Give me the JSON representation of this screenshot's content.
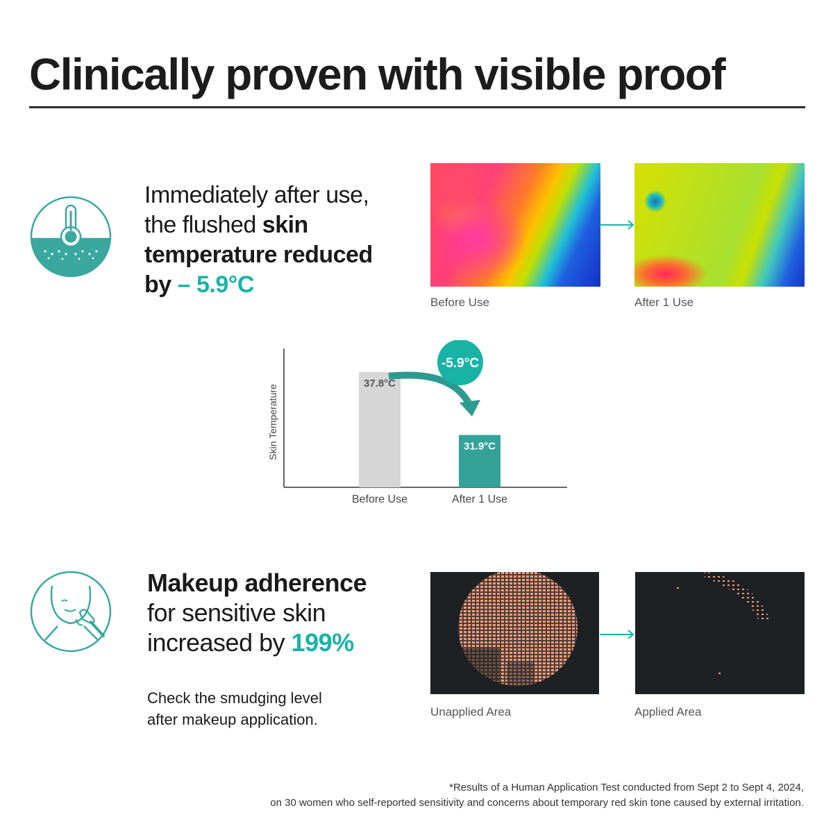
{
  "title": "Clinically proven with visible proof",
  "temperature": {
    "claim_line1": "Immediately after use,",
    "claim_line2_pre": "the flushed ",
    "claim_line2_bold": "skin",
    "claim_line3_bold": "temperature reduced",
    "claim_line4_bold": "by",
    "claim_value": "– 5.9°C",
    "icon": "thermometer-skin-icon",
    "images": [
      {
        "caption": "Before Use"
      },
      {
        "caption": "After 1 Use"
      }
    ]
  },
  "chart_data": {
    "type": "bar",
    "ylabel": "Skin Temperature",
    "categories": [
      "Before Use",
      "After 1 Use"
    ],
    "values": [
      37.8,
      31.9
    ],
    "data_labels": [
      "37.8°C",
      "31.9°C"
    ],
    "colors": [
      "#d6d6d6",
      "#33a39a"
    ],
    "annotation": "-5.9°C",
    "ylim": [
      27,
      40
    ],
    "grid": false
  },
  "makeup": {
    "claim_line1_bold": "Makeup adherence",
    "claim_line2": "for sensitive skin",
    "claim_line3_pre": "increased by ",
    "claim_value": "199%",
    "note_line1": "Check the smudging level",
    "note_line2": "after makeup application.",
    "icon": "face-makeup-brush-icon",
    "images": [
      {
        "caption": "Unapplied Area"
      },
      {
        "caption": "Applied Area"
      }
    ]
  },
  "footnote": {
    "line1": "*Results of a Human Application Test conducted from Sept 2 to Sept 4, 2024,",
    "line2": "on 30 women who self-reported sensitivity and concerns about temporary red skin tone caused by external irritation."
  },
  "colors": {
    "accent": "#19b3a6",
    "teal_icon": "#3aa89e",
    "bar_before": "#d6d6d6",
    "bar_after": "#33a39a",
    "makeup_powder": "#f0a07a"
  }
}
